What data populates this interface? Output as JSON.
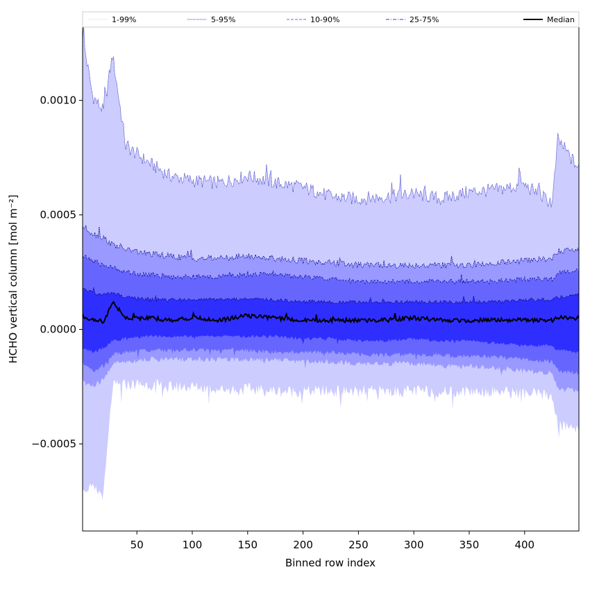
{
  "chart_data": {
    "type": "area",
    "xlabel": "Binned row index",
    "ylabel": "HCHO vertical column [mol m⁻²]",
    "xlim": [
      1,
      449
    ],
    "ylim": [
      -0.00088,
      0.00132
    ],
    "x_ticks": [
      50,
      100,
      150,
      200,
      250,
      300,
      350,
      400
    ],
    "x_tick_labels": [
      "50",
      "100",
      "150",
      "200",
      "250",
      "300",
      "350",
      "400"
    ],
    "y_ticks": [
      -0.0005,
      0.0,
      0.0005,
      0.001
    ],
    "y_tick_labels": [
      "−0.0005",
      "0.0000",
      "0.0005",
      "0.0010"
    ],
    "grid": false,
    "legend_position": "top",
    "legend": [
      {
        "label": "1-99%",
        "style": "dotted",
        "color": "#ccccff"
      },
      {
        "label": "5-95%",
        "style": "dotted",
        "color": "#3333ff"
      },
      {
        "label": "10-90%",
        "style": "dashed",
        "color": "#6666ff"
      },
      {
        "label": "25-75%",
        "style": "dashdot",
        "color": "#3333ff"
      },
      {
        "label": "Median",
        "style": "solid",
        "color": "#000000"
      }
    ],
    "x": [
      1,
      10,
      20,
      28,
      40,
      60,
      80,
      100,
      125,
      150,
      175,
      200,
      225,
      250,
      275,
      300,
      325,
      350,
      375,
      400,
      425,
      430,
      449
    ],
    "series": [
      {
        "name": "Median",
        "values": [
          6e-05,
          4e-05,
          3e-05,
          0.00012,
          5e-05,
          5e-05,
          4e-05,
          5e-05,
          4e-05,
          6e-05,
          5e-05,
          4e-05,
          4e-05,
          4e-05,
          4e-05,
          5e-05,
          4e-05,
          4e-05,
          4e-05,
          4e-05,
          4e-05,
          5e-05,
          5e-05
        ]
      },
      {
        "name": "25-75%",
        "lower": [
          -8e-05,
          -0.0001,
          -8e-05,
          -5e-05,
          -4e-05,
          -3e-05,
          -3e-05,
          -3e-05,
          -3e-05,
          -3e-05,
          -3e-05,
          -4e-05,
          -4e-05,
          -5e-05,
          -5e-05,
          -4e-05,
          -5e-05,
          -5e-05,
          -6e-05,
          -7e-05,
          -7e-05,
          -9e-05,
          -0.0001
        ],
        "upper": [
          0.00018,
          0.00016,
          0.00015,
          0.00016,
          0.00014,
          0.00013,
          0.00013,
          0.00013,
          0.00013,
          0.00013,
          0.00013,
          0.00012,
          0.00012,
          0.00012,
          0.00012,
          0.00012,
          0.00012,
          0.00012,
          0.00012,
          0.00013,
          0.00013,
          0.00014,
          0.00015
        ]
      },
      {
        "name": "10-90%",
        "lower": [
          -0.00015,
          -0.00018,
          -0.00016,
          -0.00011,
          -0.0001,
          -9e-05,
          -9e-05,
          -9e-05,
          -9e-05,
          -9e-05,
          -0.0001,
          -0.0001,
          -0.0001,
          -0.00011,
          -0.00011,
          -0.00011,
          -0.00011,
          -0.00012,
          -0.00012,
          -0.00013,
          -0.00014,
          -0.00018,
          -0.00019
        ],
        "upper": [
          0.00032,
          0.0003,
          0.00028,
          0.00027,
          0.00025,
          0.00024,
          0.00023,
          0.00023,
          0.00023,
          0.00024,
          0.00024,
          0.00023,
          0.00022,
          0.00021,
          0.00021,
          0.00021,
          0.00021,
          0.00021,
          0.00021,
          0.00022,
          0.00022,
          0.00025,
          0.00026
        ]
      },
      {
        "name": "5-95%",
        "lower": [
          -0.00022,
          -0.00025,
          -0.00022,
          -0.00015,
          -0.00014,
          -0.00013,
          -0.00013,
          -0.00013,
          -0.00013,
          -0.00013,
          -0.00013,
          -0.00014,
          -0.00014,
          -0.00015,
          -0.00015,
          -0.00015,
          -0.00016,
          -0.00016,
          -0.00017,
          -0.00018,
          -0.00019,
          -0.00026,
          -0.00027
        ],
        "upper": [
          0.00045,
          0.00042,
          0.0004,
          0.00037,
          0.00035,
          0.00033,
          0.00032,
          0.00031,
          0.00031,
          0.00032,
          0.00031,
          0.0003,
          0.00029,
          0.00028,
          0.00028,
          0.00028,
          0.00028,
          0.00028,
          0.00029,
          0.0003,
          0.00031,
          0.00034,
          0.00035
        ]
      },
      {
        "name": "1-99%",
        "lower": [
          -0.00068,
          -0.0007,
          -0.00072,
          -0.00025,
          -0.00024,
          -0.00024,
          -0.00025,
          -0.00025,
          -0.00026,
          -0.00026,
          -0.00027,
          -0.00027,
          -0.00027,
          -0.00027,
          -0.00027,
          -0.00027,
          -0.00027,
          -0.00027,
          -0.00027,
          -0.00028,
          -0.00029,
          -0.00042,
          -0.00043
        ],
        "upper": [
          0.00128,
          0.00102,
          0.00095,
          0.0012,
          0.0008,
          0.00073,
          0.00067,
          0.00065,
          0.00064,
          0.00067,
          0.00064,
          0.00062,
          0.00058,
          0.00057,
          0.00058,
          0.00059,
          0.00057,
          0.0006,
          0.00061,
          0.00063,
          0.00055,
          0.00083,
          0.0007
        ]
      }
    ]
  }
}
